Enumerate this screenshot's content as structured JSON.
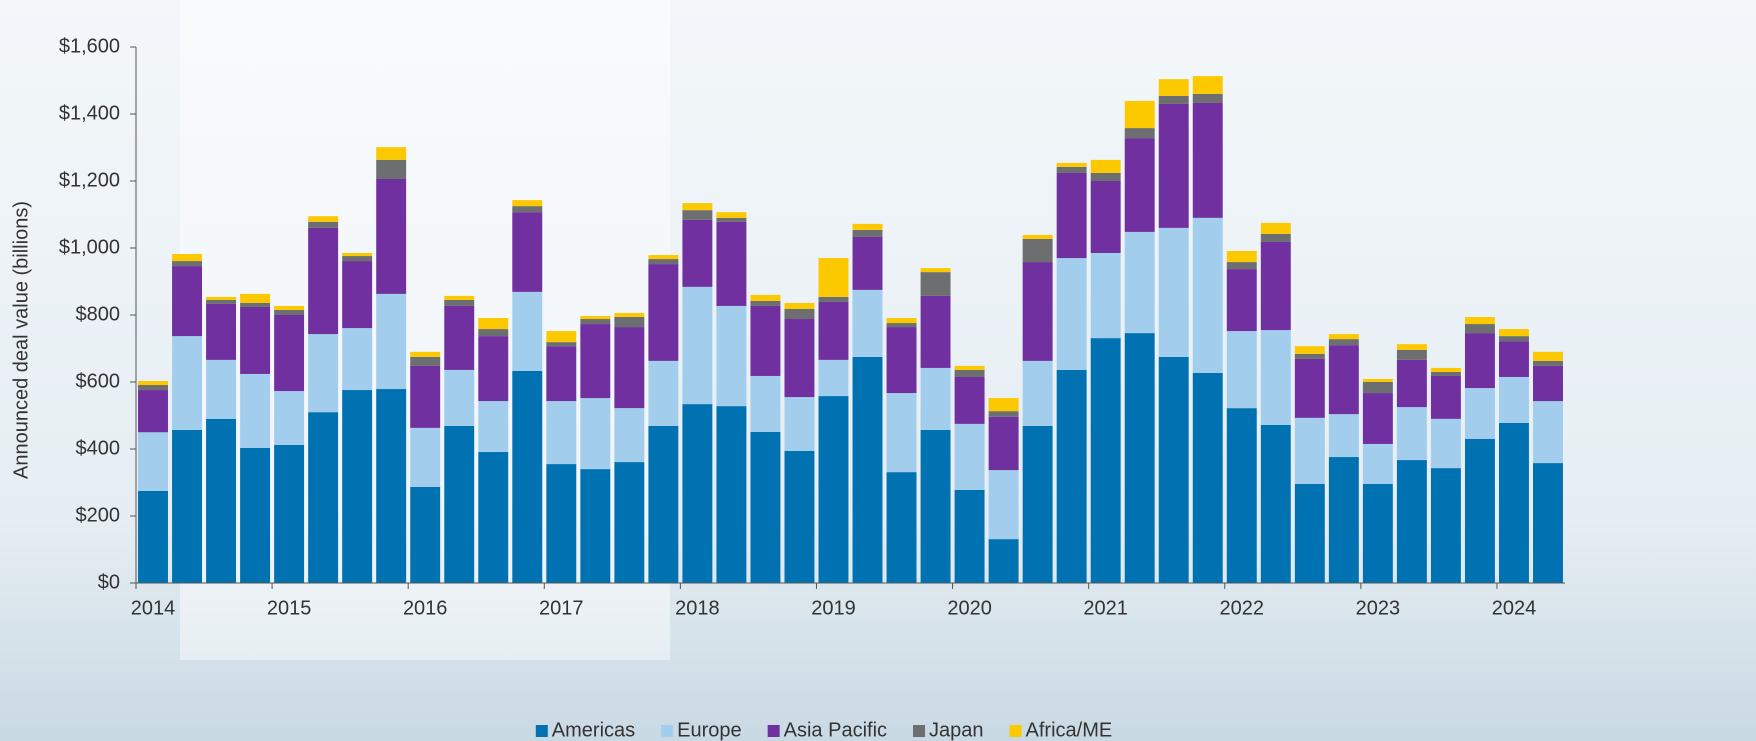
{
  "chart_data": {
    "type": "stacked_bar",
    "y_label": "Announced deal value (billions)",
    "categories": [
      "2014",
      null,
      null,
      null,
      "2015",
      null,
      null,
      null,
      "2016",
      null,
      null,
      null,
      "2017",
      null,
      null,
      null,
      "2018",
      null,
      null,
      null,
      "2019",
      null,
      null,
      null,
      "2020",
      null,
      null,
      null,
      "2021",
      null,
      null,
      null,
      "2022",
      null,
      null,
      null,
      "2023",
      null,
      null,
      null,
      "2024",
      null
    ],
    "series": [
      {
        "name": "Americas",
        "color": "#0072b1",
        "values": [
          275,
          457,
          490,
          403,
          412,
          510,
          576,
          579,
          287,
          469,
          391,
          633,
          355,
          340,
          361,
          469,
          534,
          528,
          451,
          394,
          558,
          675,
          331,
          457,
          278,
          131,
          469,
          636,
          731,
          746,
          675,
          627,
          522,
          472,
          296,
          376,
          296,
          367,
          343,
          430,
          478,
          358
        ]
      },
      {
        "name": "Europe",
        "color": "#a2cdec",
        "values": [
          175,
          280,
          176,
          221,
          161,
          233,
          185,
          284,
          176,
          167,
          152,
          236,
          188,
          212,
          161,
          194,
          350,
          299,
          167,
          161,
          108,
          200,
          236,
          185,
          197,
          206,
          194,
          334,
          254,
          302,
          385,
          463,
          230,
          283,
          197,
          128,
          119,
          158,
          147,
          152,
          137,
          185
        ]
      },
      {
        "name": "Asia Pacific",
        "color": "#7030a0",
        "values": [
          126,
          209,
          167,
          200,
          227,
          317,
          200,
          343,
          185,
          191,
          194,
          238,
          164,
          221,
          242,
          289,
          200,
          251,
          209,
          233,
          173,
          158,
          197,
          215,
          140,
          159,
          295,
          254,
          215,
          280,
          370,
          343,
          185,
          263,
          176,
          206,
          152,
          141,
          128,
          164,
          107,
          105
        ]
      },
      {
        "name": "Japan",
        "color": "#6d6e70",
        "values": [
          15,
          15,
          12,
          12,
          15,
          18,
          15,
          57,
          27,
          18,
          21,
          18,
          12,
          15,
          30,
          15,
          29,
          12,
          15,
          30,
          15,
          21,
          12,
          71,
          21,
          17,
          69,
          18,
          24,
          30,
          24,
          27,
          21,
          24,
          15,
          18,
          33,
          30,
          12,
          27,
          15,
          15
        ]
      },
      {
        "name": "Africa/ME",
        "color": "#fcc800",
        "values": [
          12,
          21,
          9,
          27,
          12,
          17,
          9,
          38,
          15,
          12,
          33,
          18,
          33,
          9,
          12,
          12,
          21,
          17,
          18,
          18,
          116,
          18,
          15,
          12,
          12,
          39,
          12,
          12,
          39,
          81,
          50,
          53,
          33,
          33,
          23,
          15,
          9,
          17,
          12,
          21,
          21,
          27
        ]
      }
    ],
    "ylim": [
      0,
      1600
    ],
    "yticks": [
      {
        "value": 0,
        "label": "$0"
      },
      {
        "value": 200,
        "label": "$200"
      },
      {
        "value": 400,
        "label": "$400"
      },
      {
        "value": 600,
        "label": "$600"
      },
      {
        "value": 800,
        "label": "$800"
      },
      {
        "value": 1000,
        "label": "$1,000"
      },
      {
        "value": 1200,
        "label": "$1,200"
      },
      {
        "value": 1400,
        "label": "$1,400"
      },
      {
        "value": 1600,
        "label": "$1,600"
      }
    ],
    "legend": "bottom"
  }
}
